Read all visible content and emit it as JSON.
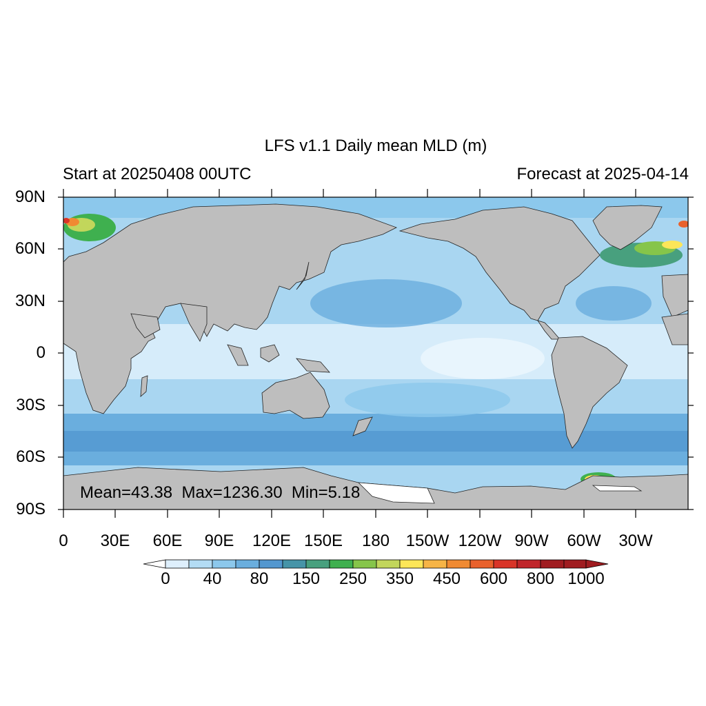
{
  "plot": {
    "title": "LFS v1.1 Daily mean MLD (m)",
    "left_subtitle": "Start at 20250408 00UTC",
    "right_subtitle": "Forecast at 2025-04-14",
    "stats": "Mean=43.38  Max=1236.30  Min=5.18"
  },
  "axes": {
    "lat_labels": [
      "90N",
      "60N",
      "30N",
      "0",
      "30S",
      "60S",
      "90S"
    ],
    "lon_labels": [
      "0",
      "30E",
      "60E",
      "90E",
      "120E",
      "150E",
      "180",
      "150W",
      "120W",
      "90W",
      "60W",
      "30W"
    ]
  },
  "colorbar": {
    "labels": [
      "0",
      "40",
      "80",
      "150",
      "250",
      "350",
      "450",
      "600",
      "800",
      "1000"
    ],
    "colors": [
      "#ffffff",
      "#deeffc",
      "#b3dcf4",
      "#8cc8ec",
      "#6aaede",
      "#5397cf",
      "#4694a8",
      "#48a07e",
      "#3fb04f",
      "#86c54a",
      "#c2d65b",
      "#fde658",
      "#f6b446",
      "#f08a32",
      "#e9612c",
      "#d93428",
      "#c0252a",
      "#a01c20"
    ]
  },
  "colors": {
    "land": "#bebebe",
    "ocean_shallow": "#deeffc",
    "ocean_mid": "#8cc8ec",
    "ocean_deep": "#5397cf"
  }
}
